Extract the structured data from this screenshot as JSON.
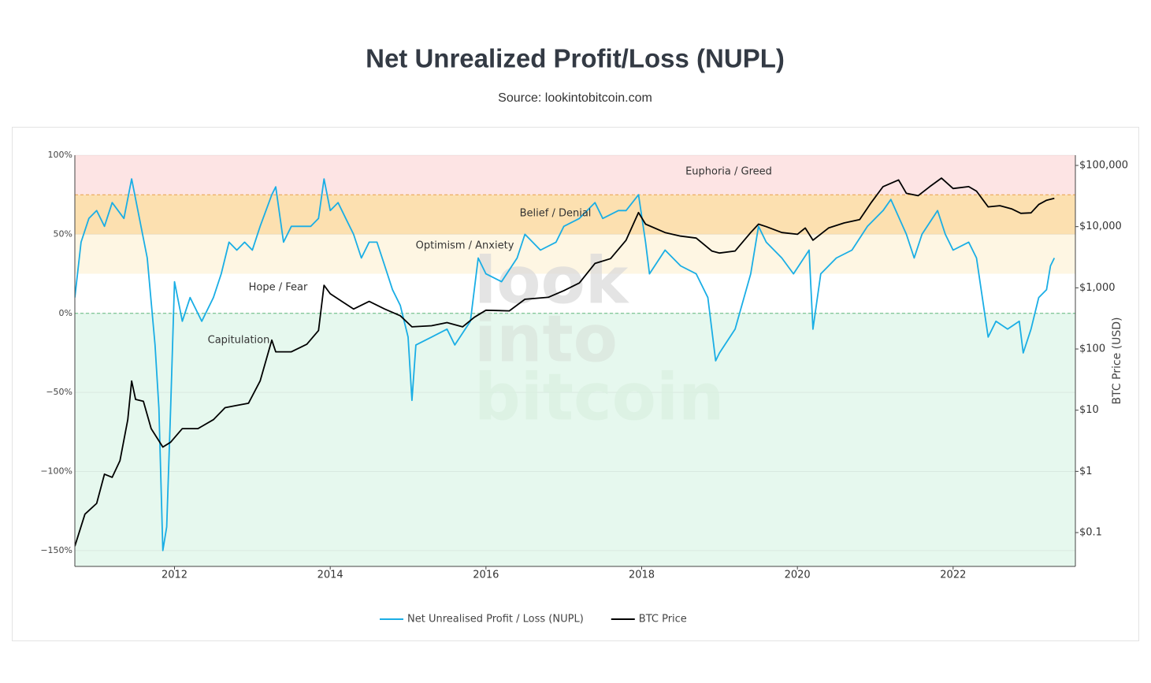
{
  "chart_data": {
    "type": "line",
    "title": "Net Unrealized Profit/Loss (NUPL)",
    "subtitle": "Source: lookintobitcoin.com",
    "watermark": [
      "look",
      "into",
      "bitcoin"
    ],
    "y2_label": "BTC Price (USD)",
    "xlim": [
      2010.72,
      2023.57
    ],
    "xticks": [
      2012,
      2014,
      2016,
      2018,
      2020,
      2022
    ],
    "ylim": [
      -160,
      100
    ],
    "yticks": [
      {
        "value": -150,
        "label": "−150%"
      },
      {
        "value": -100,
        "label": "−100%"
      },
      {
        "value": -50,
        "label": "−50%"
      },
      {
        "value": 0,
        "label": "0%"
      },
      {
        "value": 50,
        "label": "50%"
      },
      {
        "value": 100,
        "label": "100%"
      }
    ],
    "y2lim": [
      0.028,
      147000
    ],
    "y2scale": "log",
    "y2ticks": [
      {
        "value": 0.1,
        "label": "$0.1"
      },
      {
        "value": 1,
        "label": "$1"
      },
      {
        "value": 10,
        "label": "$10"
      },
      {
        "value": 100,
        "label": "$100"
      },
      {
        "value": 1000,
        "label": "$1,000"
      },
      {
        "value": 10000,
        "label": "$10,000"
      },
      {
        "value": 100000,
        "label": "$100,000"
      }
    ],
    "grid": true,
    "legend": "bottom",
    "zones": [
      {
        "label": "Euphoria / Greed",
        "from": 75,
        "to": 100,
        "color": "#fde4e4"
      },
      {
        "label": "Belief / Denial",
        "from": 50,
        "to": 75,
        "color": "#fce0b0"
      },
      {
        "label": "Optimism / Anxiety",
        "from": 25,
        "to": 50,
        "color": "#fef6e3"
      },
      {
        "label": "Hope / Fear",
        "from": 0,
        "to": 25,
        "color": "#ffffff"
      },
      {
        "label": "Capitulation",
        "from": -160,
        "to": 0,
        "color": "#e6f8ee"
      }
    ],
    "reference_lines": [
      {
        "value": 0,
        "color": "#5fb87a"
      },
      {
        "value": 75,
        "color": "#e8a04a"
      }
    ],
    "series": [
      {
        "name": "Net Unrealised Profit / Loss (NUPL)",
        "color": "#1aaee5",
        "x": [
          2010.72,
          2010.8,
          2010.9,
          2011.0,
          2011.1,
          2011.2,
          2011.35,
          2011.45,
          2011.55,
          2011.65,
          2011.75,
          2011.8,
          2011.85,
          2011.9,
          2011.95,
          2012.0,
          2012.1,
          2012.2,
          2012.35,
          2012.5,
          2012.6,
          2012.7,
          2012.8,
          2012.9,
          2013.0,
          2013.1,
          2013.25,
          2013.3,
          2013.4,
          2013.5,
          2013.6,
          2013.75,
          2013.85,
          2013.92,
          2014.0,
          2014.1,
          2014.2,
          2014.3,
          2014.4,
          2014.5,
          2014.6,
          2014.7,
          2014.8,
          2014.9,
          2015.0,
          2015.05,
          2015.1,
          2015.3,
          2015.5,
          2015.6,
          2015.8,
          2015.9,
          2016.0,
          2016.2,
          2016.4,
          2016.5,
          2016.7,
          2016.9,
          2017.0,
          2017.2,
          2017.4,
          2017.5,
          2017.7,
          2017.8,
          2017.96,
          2018.05,
          2018.1,
          2018.3,
          2018.5,
          2018.7,
          2018.85,
          2018.95,
          2019.0,
          2019.2,
          2019.4,
          2019.5,
          2019.6,
          2019.8,
          2019.95,
          2020.15,
          2020.2,
          2020.3,
          2020.5,
          2020.7,
          2020.9,
          2021.1,
          2021.2,
          2021.4,
          2021.5,
          2021.6,
          2021.8,
          2021.9,
          2022.0,
          2022.2,
          2022.3,
          2022.45,
          2022.55,
          2022.7,
          2022.85,
          2022.9,
          2023.0,
          2023.1,
          2023.2,
          2023.25,
          2023.3
        ],
        "values": [
          10,
          45,
          60,
          65,
          55,
          70,
          60,
          85,
          60,
          35,
          -20,
          -60,
          -150,
          -135,
          -60,
          20,
          -5,
          10,
          -5,
          10,
          25,
          45,
          40,
          45,
          40,
          55,
          75,
          80,
          45,
          55,
          55,
          55,
          60,
          85,
          65,
          70,
          60,
          50,
          35,
          45,
          45,
          30,
          15,
          5,
          -15,
          -55,
          -20,
          -15,
          -10,
          -20,
          -5,
          35,
          25,
          20,
          35,
          50,
          40,
          45,
          55,
          60,
          70,
          60,
          65,
          65,
          75,
          45,
          25,
          40,
          30,
          25,
          10,
          -30,
          -25,
          -10,
          25,
          55,
          45,
          35,
          25,
          40,
          -10,
          25,
          35,
          40,
          55,
          65,
          72,
          50,
          35,
          50,
          65,
          50,
          40,
          45,
          35,
          -15,
          -5,
          -10,
          -5,
          -25,
          -10,
          10,
          15,
          30,
          35
        ]
      },
      {
        "name": "BTC Price",
        "color": "#000000",
        "axis": "y2",
        "x": [
          2010.72,
          2010.85,
          2011.0,
          2011.1,
          2011.2,
          2011.3,
          2011.4,
          2011.45,
          2011.5,
          2011.6,
          2011.7,
          2011.85,
          2011.95,
          2012.1,
          2012.3,
          2012.5,
          2012.65,
          2012.8,
          2012.95,
          2013.1,
          2013.25,
          2013.3,
          2013.5,
          2013.7,
          2013.85,
          2013.92,
          2014.0,
          2014.15,
          2014.3,
          2014.5,
          2014.7,
          2014.9,
          2015.05,
          2015.3,
          2015.5,
          2015.7,
          2015.85,
          2016.0,
          2016.3,
          2016.5,
          2016.8,
          2017.0,
          2017.2,
          2017.4,
          2017.6,
          2017.8,
          2017.96,
          2018.05,
          2018.3,
          2018.5,
          2018.7,
          2018.9,
          2019.0,
          2019.2,
          2019.4,
          2019.5,
          2019.6,
          2019.8,
          2020.0,
          2020.1,
          2020.2,
          2020.4,
          2020.6,
          2020.8,
          2020.95,
          2021.1,
          2021.3,
          2021.4,
          2021.55,
          2021.7,
          2021.85,
          2022.0,
          2022.2,
          2022.3,
          2022.45,
          2022.6,
          2022.75,
          2022.87,
          2023.0,
          2023.1,
          2023.2,
          2023.3
        ],
        "values": [
          0.06,
          0.2,
          0.3,
          0.9,
          0.8,
          1.5,
          7,
          30,
          15,
          14,
          5,
          2.5,
          3,
          5,
          5,
          7,
          11,
          12,
          13,
          30,
          140,
          90,
          90,
          120,
          200,
          1100,
          800,
          600,
          450,
          600,
          450,
          350,
          230,
          240,
          270,
          230,
          330,
          430,
          420,
          650,
          700,
          900,
          1200,
          2500,
          3000,
          6000,
          17000,
          11000,
          8000,
          7000,
          6500,
          4000,
          3700,
          4000,
          8000,
          11000,
          10000,
          8000,
          7500,
          9500,
          6000,
          9500,
          11500,
          13000,
          25000,
          45000,
          58000,
          35000,
          32000,
          45000,
          62000,
          42000,
          45000,
          38000,
          21000,
          22000,
          19500,
          16500,
          16800,
          23000,
          27000,
          29000
        ]
      }
    ]
  }
}
